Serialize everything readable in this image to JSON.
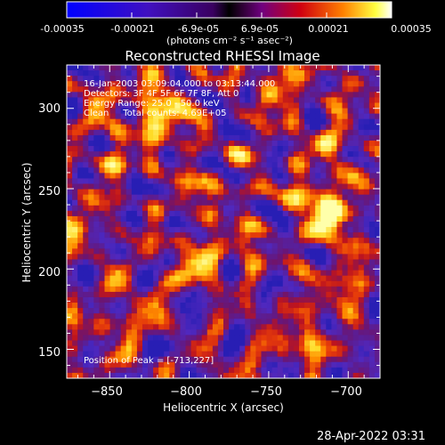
{
  "colorbar": {
    "ticks": [
      "-0.00035",
      "-0.00021",
      "-6.9e-05",
      "6.9e-05",
      "0.00021",
      "0.00035"
    ],
    "unit_label": "(photons cm⁻² s⁻¹ asec⁻²)",
    "range": [
      -0.00035,
      0.00035
    ]
  },
  "chart_data": {
    "type": "heatmap",
    "title": "Reconstructed RHESSI Image",
    "xlabel": "Heliocentric X (arcsec)",
    "ylabel": "Heliocentric Y (arcsec)",
    "xlim": [
      -877,
      -680
    ],
    "ylim": [
      132,
      327
    ],
    "x_ticks": [
      -850,
      -800,
      -750,
      -700
    ],
    "y_ticks": [
      150,
      200,
      250,
      300
    ],
    "peak_position": [
      -713,
      227
    ],
    "annotations": [
      "16-Jan-2003 03:09:04.000 to 03:13:44.000",
      "Detectors: 3F 4F 5F 6F 7F 8F, Att 0",
      "Energy Range: 25.0 - 50.0 keV",
      "Clean     Total counts: 4.69E+05"
    ],
    "peak_label": "Position of Peak = [-713,227]",
    "grid": false
  },
  "footer": {
    "date": "28-Apr-2022 03:31"
  }
}
